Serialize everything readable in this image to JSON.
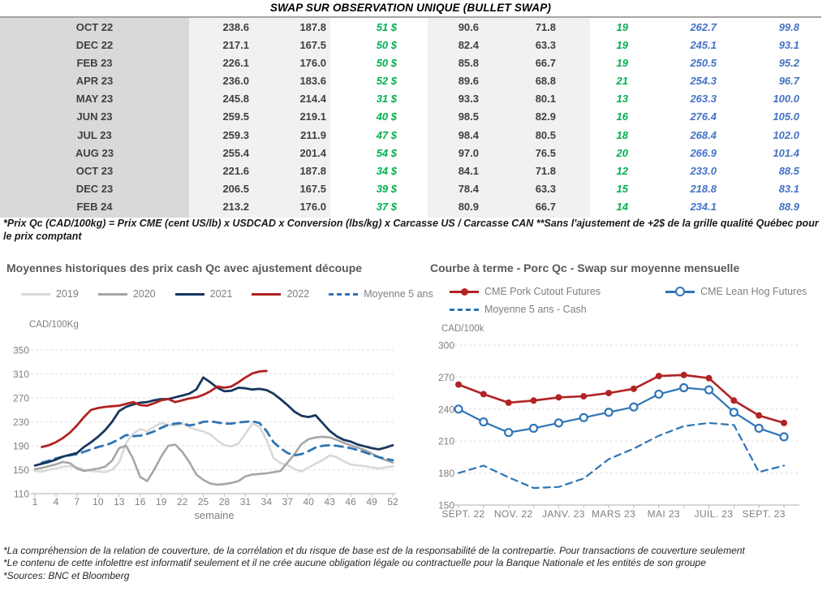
{
  "page_title": "SWAP SUR OBSERVATION UNIQUE (BULLET SWAP)",
  "colors": {
    "title_red": "#EE1111",
    "green": "#00B050",
    "blue": "#4472C4",
    "band_dark": "#D9D9D9",
    "band_light": "#F1F1F1",
    "rule": "#A6A6A6",
    "chart_title_gray": "#595959",
    "axis_text_gray": "#7F7F7F",
    "navy_2021": "#17375E",
    "red_2022": "#B22222",
    "steel_blue": "#2E75B6",
    "gray_2020": "#A6A6A6",
    "light_gray_2019": "#D8D8D8"
  },
  "table": {
    "columns": [
      "month",
      "col1",
      "col2",
      "col3_dollar",
      "col4",
      "col5",
      "col6_count",
      "col7_prix",
      "col8_index"
    ],
    "rows": [
      {
        "month": "OCT 22",
        "cells": [
          "238.6",
          "187.8",
          "51 $",
          "90.6",
          "71.8",
          "19",
          "262.7",
          "99.8"
        ]
      },
      {
        "month": "DEC 22",
        "cells": [
          "217.1",
          "167.5",
          "50 $",
          "82.4",
          "63.3",
          "19",
          "245.1",
          "93.1"
        ]
      },
      {
        "month": "FEB 23",
        "cells": [
          "226.1",
          "176.0",
          "50 $",
          "85.8",
          "66.7",
          "19",
          "250.5",
          "95.2"
        ]
      },
      {
        "month": "APR 23",
        "cells": [
          "236.0",
          "183.6",
          "52 $",
          "89.6",
          "68.8",
          "21",
          "254.3",
          "96.7"
        ]
      },
      {
        "month": "MAY 23",
        "cells": [
          "245.8",
          "214.4",
          "31 $",
          "93.3",
          "80.1",
          "13",
          "263.3",
          "100.0"
        ]
      },
      {
        "month": "JUN 23",
        "cells": [
          "259.5",
          "219.1",
          "40 $",
          "98.5",
          "82.9",
          "16",
          "276.4",
          "105.0"
        ]
      },
      {
        "month": "JUL 23",
        "cells": [
          "259.3",
          "211.9",
          "47 $",
          "98.4",
          "80.5",
          "18",
          "268.4",
          "102.0"
        ]
      },
      {
        "month": "AUG 23",
        "cells": [
          "255.4",
          "201.4",
          "54 $",
          "97.0",
          "76.5",
          "20",
          "266.9",
          "101.4"
        ]
      },
      {
        "month": "OCT 23",
        "cells": [
          "221.6",
          "187.8",
          "34 $",
          "84.1",
          "71.8",
          "12",
          "233.0",
          "88.5"
        ]
      },
      {
        "month": "DEC 23",
        "cells": [
          "206.5",
          "167.5",
          "39 $",
          "78.4",
          "63.3",
          "15",
          "218.8",
          "83.1"
        ]
      },
      {
        "month": "FEB 24",
        "cells": [
          "213.2",
          "176.0",
          "37 $",
          "80.9",
          "66.7",
          "14",
          "234.1",
          "88.9"
        ]
      }
    ],
    "footnote": "*Prix Qc (CAD/100kg) = Prix CME (cent US/lb) x USDCAD x Conversion (lbs/kg) x Carcasse US / Carcasse CAN **Sans l'ajustement de +2$ de la grille qualité Québec pour le prix comptant"
  },
  "chart_data": [
    {
      "type": "line",
      "title": "Moyennes historiques des prix cash Qc avec ajustement découpe",
      "y_unit": "CAD/100Kg",
      "xlabel": "semaine",
      "xticks": [
        1,
        4,
        7,
        10,
        13,
        16,
        19,
        22,
        25,
        28,
        31,
        34,
        37,
        40,
        43,
        46,
        49,
        52
      ],
      "yticks": [
        110,
        150,
        190,
        230,
        270,
        310,
        350
      ],
      "ylim": [
        110,
        350
      ],
      "x_range": [
        1,
        52
      ],
      "grid": "dashed horizontal",
      "legend_position": "top",
      "series": [
        {
          "name": "2019",
          "color": "#D8D8D8",
          "style": "solid",
          "marker": "none",
          "values": [
            148,
            147,
            150,
            152,
            155,
            156,
            154,
            150,
            148,
            147,
            146,
            150,
            162,
            195,
            210,
            218,
            214,
            222,
            228,
            225,
            224,
            227,
            221,
            217,
            214,
            209,
            199,
            191,
            189,
            194,
            210,
            227,
            222,
            200,
            170,
            161,
            158,
            151,
            147,
            154,
            160,
            166,
            174,
            171,
            164,
            159,
            157,
            156,
            154,
            152,
            154,
            156
          ]
        },
        {
          "name": "2020",
          "color": "#A6A6A6",
          "style": "solid",
          "marker": "none",
          "values": [
            151,
            153,
            156,
            159,
            163,
            161,
            152,
            148,
            150,
            152,
            155,
            165,
            186,
            190,
            168,
            138,
            131,
            150,
            172,
            190,
            192,
            180,
            163,
            142,
            133,
            127,
            125,
            126,
            128,
            131,
            139,
            142,
            143,
            144,
            146,
            148,
            162,
            176,
            193,
            201,
            204,
            205,
            204,
            200,
            195,
            191,
            187,
            183,
            177,
            171,
            166,
            162
          ]
        },
        {
          "name": "2021",
          "color": "#17375E",
          "style": "solid",
          "marker": "none",
          "values": [
            157,
            160,
            163,
            167,
            172,
            175,
            178,
            188,
            196,
            205,
            216,
            230,
            248,
            255,
            259,
            262,
            263,
            266,
            268,
            268,
            271,
            274,
            277,
            284,
            304,
            296,
            287,
            281,
            282,
            287,
            286,
            284,
            285,
            283,
            277,
            268,
            258,
            247,
            240,
            238,
            241,
            228,
            215,
            206,
            200,
            197,
            192,
            189,
            186,
            184,
            187,
            191
          ]
        },
        {
          "name": "2022",
          "color": "#B22222",
          "style": "solid",
          "marker": "none",
          "values": [
            null,
            188,
            191,
            196,
            203,
            212,
            224,
            238,
            250,
            253,
            255,
            256,
            257,
            260,
            263,
            258,
            257,
            261,
            266,
            268,
            263,
            266,
            269,
            271,
            275,
            281,
            289,
            287,
            289,
            296,
            304,
            311,
            314,
            315,
            null,
            null,
            null,
            null,
            null,
            null,
            null,
            null,
            null,
            null,
            null,
            null,
            null,
            null,
            null,
            null,
            null,
            null
          ]
        },
        {
          "name": "Moyenne 5 ans",
          "color": "#2E75B6",
          "style": "dashed",
          "marker": "none",
          "values": [
            null,
            162,
            165,
            169,
            172,
            174,
            176,
            180,
            184,
            188,
            191,
            195,
            201,
            208,
            206,
            207,
            210,
            214,
            220,
            225,
            227,
            228,
            224,
            226,
            230,
            231,
            229,
            227,
            227,
            229,
            230,
            231,
            228,
            215,
            196,
            186,
            178,
            174,
            176,
            181,
            187,
            190,
            191,
            190,
            188,
            186,
            183,
            179,
            175,
            171,
            168,
            166
          ]
        }
      ]
    },
    {
      "type": "line",
      "title": "Courbe à terme - Porc Qc - Swap sur moyenne mensuelle",
      "y_unit": "CAD/100k",
      "n_points": 14,
      "xtick_labels": [
        "SEPT. 22",
        "NOV. 22",
        "JANV. 23",
        "MARS 23",
        "MAI 23",
        "JUIL. 23",
        "SEPT. 23"
      ],
      "xtick_positions": [
        0,
        2,
        4,
        6,
        8,
        10,
        12
      ],
      "yticks": [
        150,
        180,
        210,
        240,
        270,
        300
      ],
      "ylim": [
        150,
        300
      ],
      "grid": "dashed horizontal",
      "legend_position": "top",
      "series": [
        {
          "name": "CME Pork Cutout Futures",
          "color": "#B22222",
          "style": "solid",
          "marker": "dot",
          "values": [
            263,
            254,
            246,
            248,
            251,
            252,
            255,
            259,
            271,
            272,
            269,
            248,
            234,
            227
          ]
        },
        {
          "name": "CME Lean Hog Futures",
          "color": "#2E75B6",
          "style": "solid",
          "marker": "open-circle",
          "values": [
            240,
            228,
            218,
            222,
            227,
            232,
            237,
            242,
            254,
            260,
            258,
            237,
            222,
            214
          ]
        },
        {
          "name": "Moyenne 5 ans - Cash",
          "color": "#2E75B6",
          "style": "dashed",
          "marker": "none",
          "values": [
            180,
            187,
            176,
            166,
            167,
            175,
            193,
            203,
            215,
            224,
            227,
            225,
            181,
            187
          ]
        }
      ]
    }
  ],
  "footnotes": {
    "line1": "*La compréhension de la relation de couverture, de la corrélation et du risque de base est de la responsabilité de la contrepartie. Pour transactions de couverture seulement",
    "line2": "*Le contenu de cette infolettre est informatif seulement et il ne crée aucune obligation légale ou contractuelle pour la Banque Nationale et les entités de son groupe",
    "line3": "*Sources: BNC et Bloomberg"
  }
}
